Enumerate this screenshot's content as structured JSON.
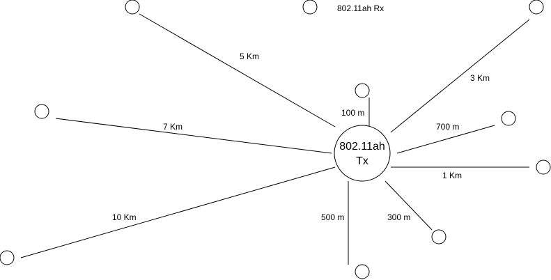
{
  "transmitter": {
    "line1": "802.11ah",
    "line2": "Tx"
  },
  "receiver_label": "802.11ah Rx",
  "links": [
    {
      "label": "5 Km"
    },
    {
      "label": "3 Km"
    },
    {
      "label": "100 m"
    },
    {
      "label": "7 Km"
    },
    {
      "label": "700 m"
    },
    {
      "label": "1 Km"
    },
    {
      "label": "10 Km"
    },
    {
      "label": "500 m"
    },
    {
      "label": "300 m"
    }
  ],
  "colors": {
    "stroke": "#000000",
    "background": "#ffffff"
  }
}
